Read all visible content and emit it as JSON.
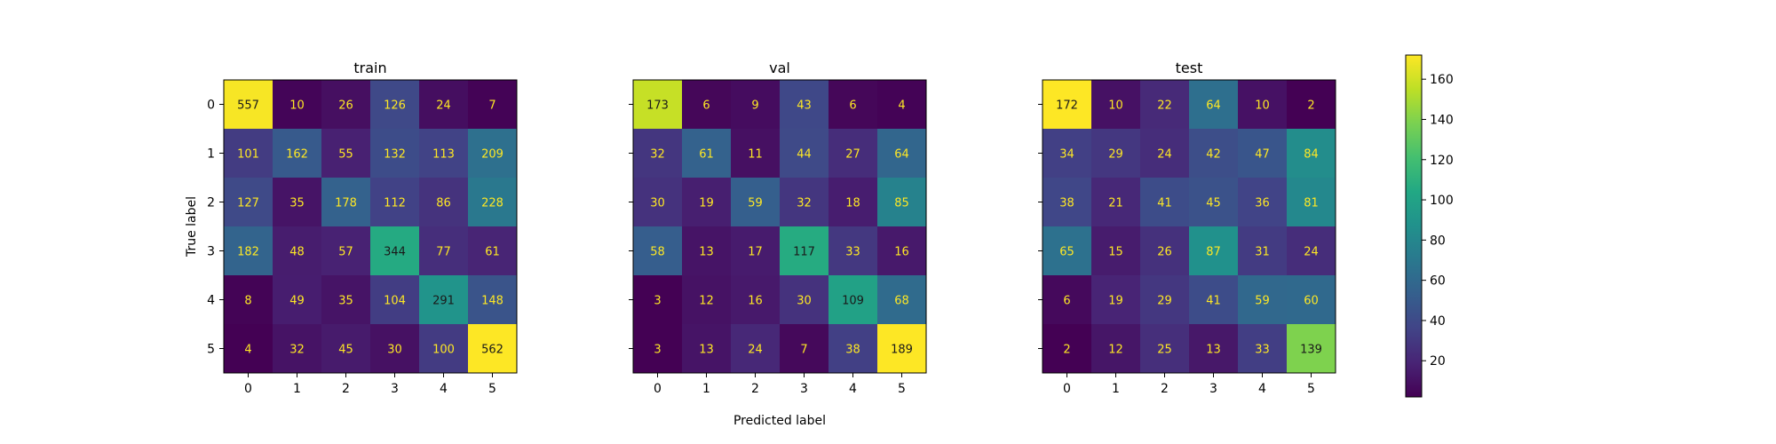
{
  "chart_data": [
    {
      "type": "heatmap",
      "title": "train",
      "xlabel": "",
      "ylabel": "True label",
      "x_ticks": [
        "0",
        "1",
        "2",
        "3",
        "4",
        "5"
      ],
      "y_ticks": [
        "0",
        "1",
        "2",
        "3",
        "4",
        "5"
      ],
      "values": [
        [
          557,
          10,
          26,
          126,
          24,
          7
        ],
        [
          101,
          162,
          55,
          132,
          113,
          209
        ],
        [
          127,
          35,
          178,
          112,
          86,
          228
        ],
        [
          182,
          48,
          57,
          344,
          77,
          61
        ],
        [
          8,
          49,
          35,
          104,
          291,
          148
        ],
        [
          4,
          32,
          45,
          30,
          100,
          562
        ]
      ]
    },
    {
      "type": "heatmap",
      "title": "val",
      "xlabel": "Predicted label",
      "ylabel": "",
      "x_ticks": [
        "0",
        "1",
        "2",
        "3",
        "4",
        "5"
      ],
      "y_ticks": [
        "",
        "",
        "",
        "",
        "",
        ""
      ],
      "values": [
        [
          173,
          6,
          9,
          43,
          6,
          4
        ],
        [
          32,
          61,
          11,
          44,
          27,
          64
        ],
        [
          30,
          19,
          59,
          32,
          18,
          85
        ],
        [
          58,
          13,
          17,
          117,
          33,
          16
        ],
        [
          3,
          12,
          16,
          30,
          109,
          68
        ],
        [
          3,
          13,
          24,
          7,
          38,
          189
        ]
      ]
    },
    {
      "type": "heatmap",
      "title": "test",
      "xlabel": "",
      "ylabel": "",
      "x_ticks": [
        "0",
        "1",
        "2",
        "3",
        "4",
        "5"
      ],
      "y_ticks": [
        "",
        "",
        "",
        "",
        "",
        ""
      ],
      "values": [
        [
          172,
          10,
          22,
          64,
          10,
          2
        ],
        [
          34,
          29,
          24,
          42,
          47,
          84
        ],
        [
          38,
          21,
          41,
          45,
          36,
          81
        ],
        [
          65,
          15,
          26,
          87,
          31,
          24
        ],
        [
          6,
          19,
          29,
          41,
          59,
          60
        ],
        [
          2,
          12,
          25,
          13,
          33,
          139
        ]
      ]
    }
  ],
  "colorbar": {
    "colormap": "viridis",
    "range": [
      2,
      172
    ],
    "ticks": [
      20,
      40,
      60,
      80,
      100,
      120,
      140,
      160
    ]
  }
}
